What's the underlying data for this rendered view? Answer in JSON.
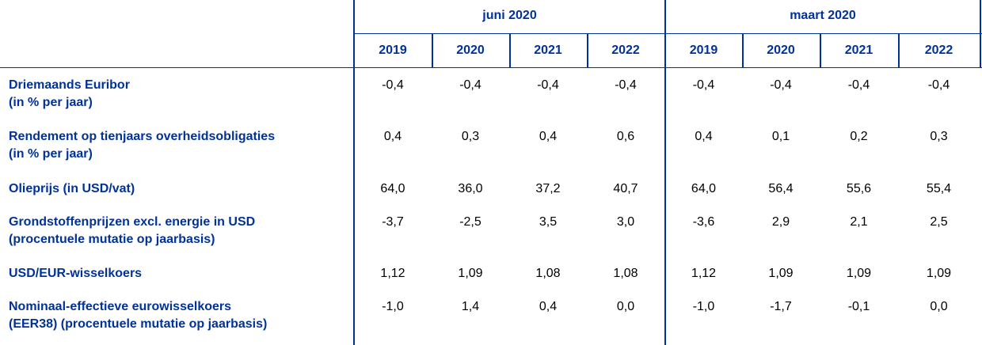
{
  "header": {
    "groups": [
      "juni 2020",
      "maart 2020"
    ],
    "years": [
      "2019",
      "2020",
      "2021",
      "2022",
      "2019",
      "2020",
      "2021",
      "2022"
    ]
  },
  "rows": [
    {
      "label1": "Driemaands Euribor",
      "label2": "(in % per jaar)",
      "values": [
        "-0,4",
        "-0,4",
        "-0,4",
        "-0,4",
        "-0,4",
        "-0,4",
        "-0,4",
        "-0,4"
      ]
    },
    {
      "label1": "Rendement op tienjaars overheidsobligaties",
      "label2": "(in % per jaar)",
      "values": [
        "0,4",
        "0,3",
        "0,4",
        "0,6",
        "0,4",
        "0,1",
        "0,2",
        "0,3"
      ]
    },
    {
      "label1": "Olieprijs (in USD/vat)",
      "label2": "",
      "values": [
        "64,0",
        "36,0",
        "37,2",
        "40,7",
        "64,0",
        "56,4",
        "55,6",
        "55,4"
      ]
    },
    {
      "label1": "Grondstoffenprijzen excl. energie in USD",
      "label2": "(procentuele mutatie op jaarbasis)",
      "values": [
        "-3,7",
        "-2,5",
        "3,5",
        "3,0",
        "-3,6",
        "2,9",
        "2,1",
        "2,5"
      ]
    },
    {
      "label1": "USD/EUR-wisselkoers",
      "label2": "",
      "values": [
        "1,12",
        "1,09",
        "1,08",
        "1,08",
        "1,12",
        "1,09",
        "1,09",
        "1,09"
      ]
    },
    {
      "label1": "Nominaal-effectieve eurowisselkoers",
      "label2": "(EER38) (procentuele mutatie op jaarbasis)",
      "values": [
        "-1,0",
        "1,4",
        "0,4",
        "0,0",
        "-1,0",
        "-1,7",
        "-0,1",
        "0,0"
      ]
    }
  ],
  "colors": {
    "header_text": "#003299",
    "grid": "#003299",
    "value_text": "#000000"
  }
}
